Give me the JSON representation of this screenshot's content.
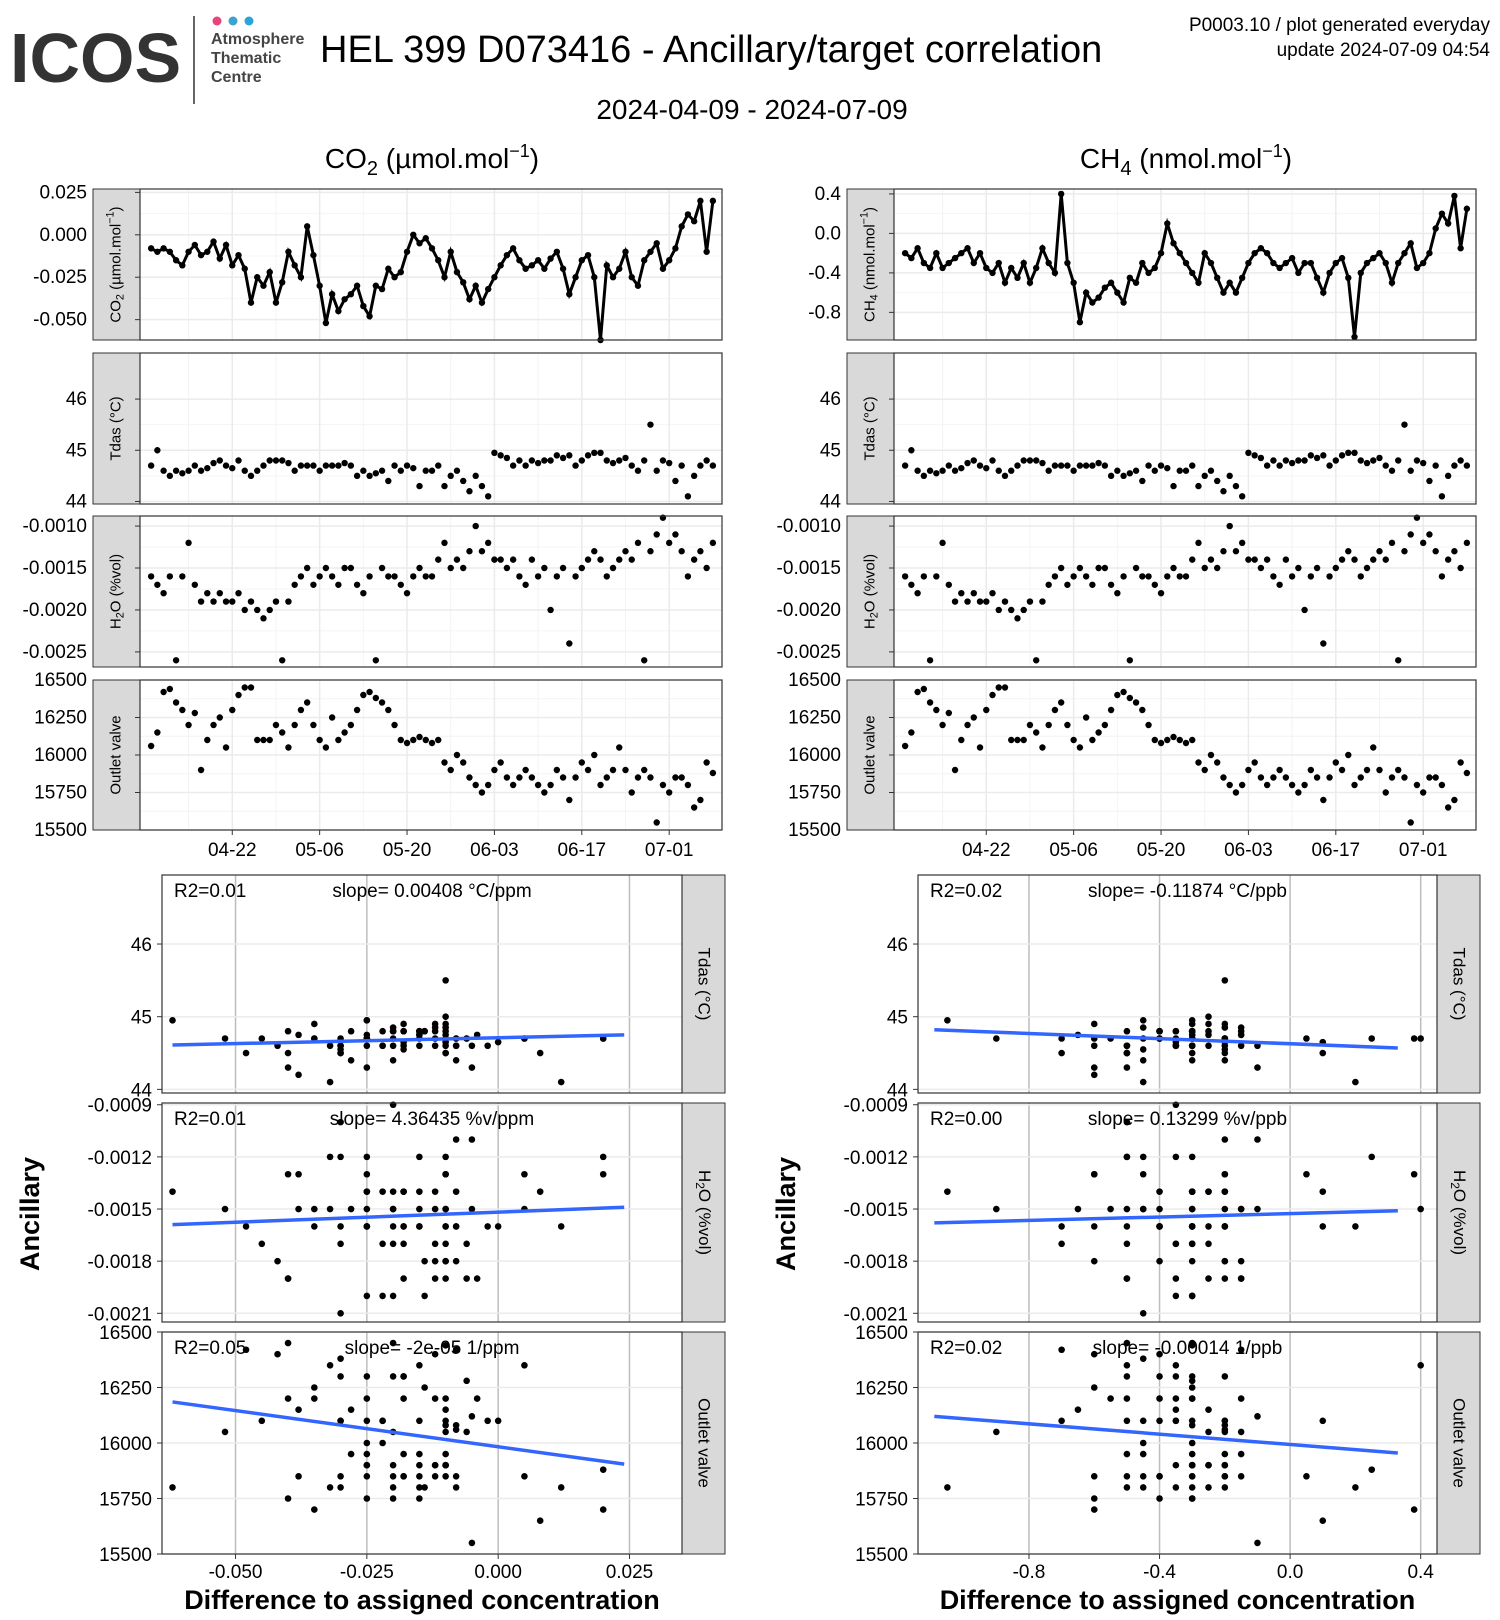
{
  "header": {
    "logo_text": "ICOS",
    "logo_sub": [
      "Atmosphere",
      "Thematic",
      "Centre"
    ],
    "title": "HEL 399 D073416 - Ancillary/target correlation",
    "subtitle": "2024-04-09 - 2024-07-09",
    "plot_id": "P0003.10 / plot generated everyday",
    "update": "update  2024-07-09 04:54"
  },
  "colors": {
    "regression": "#3366ff",
    "strip": "#d9d9d9",
    "grid_major": "#ebebeb",
    "points": "#000000"
  },
  "columns": [
    {
      "title_main": "CO",
      "title_sub": "2",
      "title_unit": " (µmol.mol",
      "title_exp": "−1",
      "title_close": ")",
      "gas_strip": "CO2 (µmol.mol-1)",
      "xlabel": "Difference to assigned concentration",
      "ts_ylim": [
        -0.062,
        0.027
      ],
      "ts_ticks": [
        "0.025",
        "0.000",
        "-0.025",
        "-0.050"
      ],
      "ts_tick_vals": [
        0.025,
        0,
        -0.025,
        -0.05
      ],
      "sc_xlim": [
        -0.064,
        0.035
      ],
      "sc_xticks": [
        "-0.050",
        "-0.025",
        "0.000",
        "0.025"
      ],
      "sc_xtick_vals": [
        -0.05,
        -0.025,
        0,
        0.025
      ],
      "x_lo": -0.062,
      "x_hi": 0.024,
      "stats": [
        {
          "r2": "R2=0.01",
          "slope": "slope= 0.00408 °C/ppm"
        },
        {
          "r2": "R2=0.01",
          "slope": "slope= 4.36435 %v/ppm"
        },
        {
          "r2": "R2=0.05",
          "slope": "slope= -2e-05 1/ppm"
        }
      ],
      "fit": [
        [
          44.61,
          44.75
        ],
        [
          -0.00159,
          -0.00149
        ],
        [
          16185,
          15905
        ]
      ]
    },
    {
      "title_main": "CH",
      "title_sub": "4",
      "title_unit": " (nmol.mol",
      "title_exp": "−1",
      "title_close": ")",
      "gas_strip": "CH4 (nmol.mol-1)",
      "xlabel": "Difference to assigned concentration",
      "ts_ylim": [
        -1.08,
        0.45
      ],
      "ts_ticks": [
        "0.4",
        "0.0",
        "-0.4",
        "-0.8"
      ],
      "ts_tick_vals": [
        0.4,
        0,
        -0.4,
        -0.8
      ],
      "sc_xlim": [
        -1.14,
        0.45
      ],
      "sc_xticks": [
        "-0.8",
        "-0.4",
        "0.0",
        "0.4"
      ],
      "sc_xtick_vals": [
        -0.8,
        -0.4,
        0,
        0.4
      ],
      "x_lo": -1.09,
      "x_hi": 0.33,
      "stats": [
        {
          "r2": "R2=0.02",
          "slope": "slope= -0.11874 °C/ppb"
        },
        {
          "r2": "R2=0.00",
          "slope": "slope= 0.13299 %v/ppb"
        },
        {
          "r2": "R2=0.02",
          "slope": "slope= -0.00014 1/ppb"
        }
      ],
      "fit": [
        [
          44.82,
          44.57
        ],
        [
          -0.00158,
          -0.00151
        ],
        [
          16120,
          15955
        ]
      ]
    }
  ],
  "ancillary": [
    {
      "strip": "Tdas (°C)",
      "ylim": [
        43.95,
        46.9
      ],
      "ticks": [
        "46",
        "45",
        "44"
      ],
      "tick_vals": [
        46,
        45,
        44
      ],
      "sc_ylim": [
        43.95,
        46.95
      ]
    },
    {
      "strip": "H2O (%vol)",
      "ylim": [
        -0.00268,
        -0.00088
      ],
      "ticks": [
        "-0.0010",
        "-0.0015",
        "-0.0020",
        "-0.0025"
      ],
      "tick_vals": [
        -0.001,
        -0.0015,
        -0.002,
        -0.0025
      ],
      "sc_ylim": [
        -0.00215,
        -0.00089
      ],
      "sc_ticks": [
        "-0.0009",
        "-0.0012",
        "-0.0015",
        "-0.0018",
        "-0.0021"
      ],
      "sc_tick_vals": [
        -0.0009,
        -0.0012,
        -0.0015,
        -0.0018,
        -0.0021
      ]
    },
    {
      "strip": "Outlet valve",
      "ylim": [
        15500,
        16500
      ],
      "ticks": [
        "16500",
        "16250",
        "16000",
        "15750",
        "15500"
      ],
      "tick_vals": [
        16500,
        16250,
        16000,
        15750,
        15500
      ],
      "sc_ylim": [
        15500,
        16500
      ]
    }
  ],
  "date_ticks": [
    "04-22",
    "05-06",
    "05-20",
    "06-03",
    "06-17",
    "07-01"
  ],
  "ylabel_scatter": "Ancillary",
  "chart_data": {
    "type": "scatter",
    "title": "HEL 399 D073416 - Ancillary/target correlation",
    "subtitle": "2024-04-09 - 2024-07-09",
    "n_days": 91,
    "date_tick_day_index": [
      13,
      27,
      41,
      55,
      69,
      83
    ],
    "series": [
      {
        "name": "CO2 diff",
        "values": [
          -0.008,
          -0.01,
          -0.008,
          -0.01,
          -0.015,
          -0.018,
          -0.01,
          -0.006,
          -0.012,
          -0.01,
          -0.004,
          -0.014,
          -0.006,
          -0.018,
          -0.012,
          -0.02,
          -0.04,
          -0.025,
          -0.03,
          -0.022,
          -0.04,
          -0.028,
          -0.01,
          -0.018,
          -0.025,
          0.005,
          -0.012,
          -0.03,
          -0.052,
          -0.035,
          -0.045,
          -0.038,
          -0.035,
          -0.03,
          -0.042,
          -0.048,
          -0.03,
          -0.032,
          -0.02,
          -0.025,
          -0.022,
          -0.01,
          0.0,
          -0.005,
          -0.002,
          -0.008,
          -0.015,
          -0.025,
          -0.01,
          -0.022,
          -0.028,
          -0.038,
          -0.03,
          -0.04,
          -0.032,
          -0.025,
          -0.018,
          -0.012,
          -0.008,
          -0.015,
          -0.02,
          -0.018,
          -0.015,
          -0.02,
          -0.014,
          -0.01,
          -0.02,
          -0.035,
          -0.025,
          -0.015,
          -0.012,
          -0.025,
          -0.062,
          -0.018,
          -0.025,
          -0.02,
          -0.01,
          -0.025,
          -0.03,
          -0.015,
          -0.01,
          -0.005,
          -0.02,
          -0.015,
          -0.008,
          0.005,
          0.012,
          0.008,
          0.02,
          -0.01,
          0.02
        ]
      },
      {
        "name": "CH4 diff",
        "values": [
          -0.2,
          -0.25,
          -0.15,
          -0.3,
          -0.35,
          -0.2,
          -0.35,
          -0.3,
          -0.25,
          -0.2,
          -0.15,
          -0.3,
          -0.2,
          -0.35,
          -0.4,
          -0.3,
          -0.5,
          -0.35,
          -0.45,
          -0.3,
          -0.5,
          -0.35,
          -0.15,
          -0.3,
          -0.4,
          0.4,
          -0.3,
          -0.5,
          -0.9,
          -0.6,
          -0.7,
          -0.65,
          -0.55,
          -0.5,
          -0.6,
          -0.7,
          -0.45,
          -0.5,
          -0.3,
          -0.4,
          -0.35,
          -0.2,
          0.1,
          -0.1,
          -0.2,
          -0.3,
          -0.4,
          -0.5,
          -0.2,
          -0.3,
          -0.45,
          -0.6,
          -0.5,
          -0.6,
          -0.45,
          -0.3,
          -0.2,
          -0.15,
          -0.2,
          -0.3,
          -0.35,
          -0.3,
          -0.25,
          -0.4,
          -0.3,
          -0.3,
          -0.45,
          -0.6,
          -0.4,
          -0.3,
          -0.25,
          -0.45,
          -1.05,
          -0.4,
          -0.3,
          -0.25,
          -0.2,
          -0.3,
          -0.5,
          -0.3,
          -0.2,
          -0.1,
          -0.35,
          -0.3,
          -0.2,
          0.05,
          0.2,
          0.1,
          0.38,
          -0.15,
          0.25
        ]
      },
      {
        "name": "Tdas (°C)",
        "values": [
          44.7,
          45.0,
          44.6,
          44.5,
          44.6,
          44.55,
          44.6,
          44.7,
          44.6,
          44.65,
          44.75,
          44.8,
          44.7,
          44.65,
          44.8,
          44.6,
          44.5,
          44.6,
          44.7,
          44.8,
          44.8,
          44.8,
          44.75,
          44.6,
          44.7,
          44.7,
          44.7,
          44.6,
          44.7,
          44.7,
          44.7,
          44.75,
          44.7,
          44.5,
          44.6,
          44.5,
          44.55,
          44.6,
          44.4,
          44.7,
          44.6,
          44.7,
          44.65,
          44.3,
          44.6,
          44.6,
          44.7,
          44.3,
          44.5,
          44.6,
          44.4,
          44.2,
          44.5,
          44.3,
          44.1,
          44.95,
          44.9,
          44.85,
          44.7,
          44.8,
          44.7,
          44.8,
          44.75,
          44.8,
          44.8,
          44.9,
          44.85,
          44.9,
          44.7,
          44.8,
          44.9,
          44.95,
          44.95,
          44.8,
          44.75,
          44.8,
          44.85,
          44.7,
          44.6,
          44.8,
          45.5,
          44.6,
          44.8,
          44.75,
          44.4,
          44.7,
          44.1,
          44.5,
          44.7,
          44.8,
          44.7
        ]
      },
      {
        "name": "H2O (%vol)",
        "values": [
          -0.0016,
          -0.0017,
          -0.0018,
          -0.0016,
          -0.0026,
          -0.0016,
          -0.0012,
          -0.0017,
          -0.0019,
          -0.0018,
          -0.0019,
          -0.0018,
          -0.0019,
          -0.0019,
          -0.0018,
          -0.002,
          -0.0019,
          -0.002,
          -0.0021,
          -0.002,
          -0.0019,
          -0.0026,
          -0.0019,
          -0.0017,
          -0.0016,
          -0.0015,
          -0.0017,
          -0.0016,
          -0.0015,
          -0.0016,
          -0.0017,
          -0.0015,
          -0.0015,
          -0.0017,
          -0.0018,
          -0.0016,
          -0.0026,
          -0.0015,
          -0.0016,
          -0.0016,
          -0.0017,
          -0.0018,
          -0.0016,
          -0.0015,
          -0.0016,
          -0.0016,
          -0.0014,
          -0.0012,
          -0.0015,
          -0.0014,
          -0.0015,
          -0.0013,
          -0.001,
          -0.0013,
          -0.0012,
          -0.0014,
          -0.0014,
          -0.0015,
          -0.0014,
          -0.0016,
          -0.0017,
          -0.0014,
          -0.0016,
          -0.0015,
          -0.002,
          -0.0016,
          -0.0015,
          -0.0024,
          -0.0016,
          -0.0015,
          -0.0014,
          -0.0013,
          -0.0014,
          -0.0016,
          -0.0015,
          -0.0014,
          -0.0013,
          -0.0014,
          -0.0012,
          -0.0026,
          -0.0013,
          -0.0011,
          -0.0009,
          -0.0012,
          -0.0011,
          -0.0013,
          -0.0016,
          -0.0014,
          -0.0013,
          -0.0015,
          -0.0012
        ]
      },
      {
        "name": "Outlet valve",
        "values": [
          16060,
          16150,
          16420,
          16440,
          16350,
          16300,
          16200,
          16280,
          15900,
          16100,
          16200,
          16250,
          16050,
          16300,
          16400,
          16450,
          16450,
          16100,
          16100,
          16100,
          16200,
          16150,
          16050,
          16200,
          16300,
          16350,
          16200,
          16100,
          16050,
          16250,
          16100,
          16150,
          16200,
          16300,
          16400,
          16420,
          16380,
          16350,
          16300,
          16200,
          16100,
          16080,
          16100,
          16120,
          16100,
          16080,
          16100,
          15950,
          15900,
          16000,
          15950,
          15850,
          15800,
          15750,
          15800,
          15900,
          15950,
          15850,
          15800,
          15850,
          15900,
          15850,
          15800,
          15750,
          15800,
          15900,
          15850,
          15700,
          15850,
          15950,
          15900,
          16000,
          15800,
          15850,
          15900,
          16050,
          15900,
          15750,
          15850,
          15900,
          15850,
          15550,
          15800,
          15750,
          15850,
          15850,
          15800,
          15650,
          15700,
          15950,
          15880
        ]
      }
    ],
    "scatter_axes": {
      "xlabel": "Difference to assigned concentration",
      "ylabel": "Ancillary"
    },
    "regression_lines": [
      {
        "panel": "CO2 / Tdas",
        "r2": 0.01,
        "slope": 0.00408
      },
      {
        "panel": "CO2 / H2O",
        "r2": 0.01,
        "slope": 4.36435
      },
      {
        "panel": "CO2 / Outlet valve",
        "r2": 0.05,
        "slope": -2e-05
      },
      {
        "panel": "CH4 / Tdas",
        "r2": 0.02,
        "slope": -0.11874
      },
      {
        "panel": "CH4 / H2O",
        "r2": 0.0,
        "slope": 0.13299
      },
      {
        "panel": "CH4 / Outlet valve",
        "r2": 0.02,
        "slope": -0.00014
      }
    ]
  }
}
